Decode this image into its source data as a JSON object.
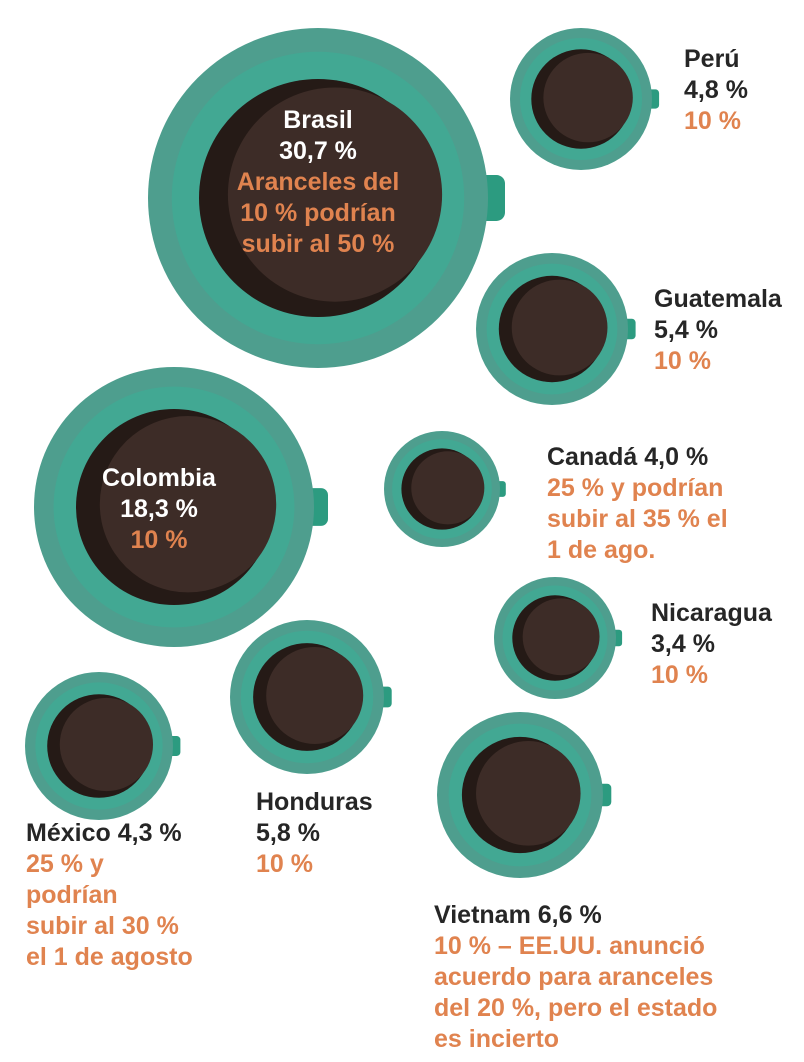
{
  "colors": {
    "saucer": "#4e9e8e",
    "cup_rim": "#42a893",
    "handle": "#2c9b80",
    "coffee": "#3d2c27",
    "coffee_shadow": "#251a16",
    "text_dark": "#262626",
    "text_light": "#ffffff",
    "tariff_text": "#e0834f"
  },
  "chart_data": {
    "type": "bubble",
    "title": "",
    "unit": "%",
    "series": [
      {
        "country": "Brasil",
        "share": 30.7,
        "share_label": "30,7 %",
        "tariff": "Aranceles del\n10 % podrían\nsubir al 50 %"
      },
      {
        "country": "Colombia",
        "share": 18.3,
        "share_label": "18,3 %",
        "tariff": "10 %"
      },
      {
        "country": "Vietnam",
        "share": 6.6,
        "share_label": "6,6 %",
        "tariff": "10 % – EE.UU. anunció\nacuerdo para aranceles\ndel 20 %, pero el estado\nes incierto"
      },
      {
        "country": "Honduras",
        "share": 5.8,
        "share_label": "5,8 %",
        "tariff": "10 %"
      },
      {
        "country": "Guatemala",
        "share": 5.4,
        "share_label": "5,4 %",
        "tariff": "10 %"
      },
      {
        "country": "Perú",
        "share": 4.8,
        "share_label": "4,8 %",
        "tariff": "10 %"
      },
      {
        "country": "México",
        "share": 4.3,
        "share_label": "4,3 %",
        "tariff": "25 % y\npodrían\nsubir al 30 %\nel 1 de agosto"
      },
      {
        "country": "Canadá",
        "share": 4.0,
        "share_label": "4,0 %",
        "tariff": "25 % y podrían\nsubir al 35 % el\n1 de ago."
      },
      {
        "country": "Nicaragua",
        "share": 3.4,
        "share_label": "3,4 %",
        "tariff": "10 %"
      }
    ]
  }
}
